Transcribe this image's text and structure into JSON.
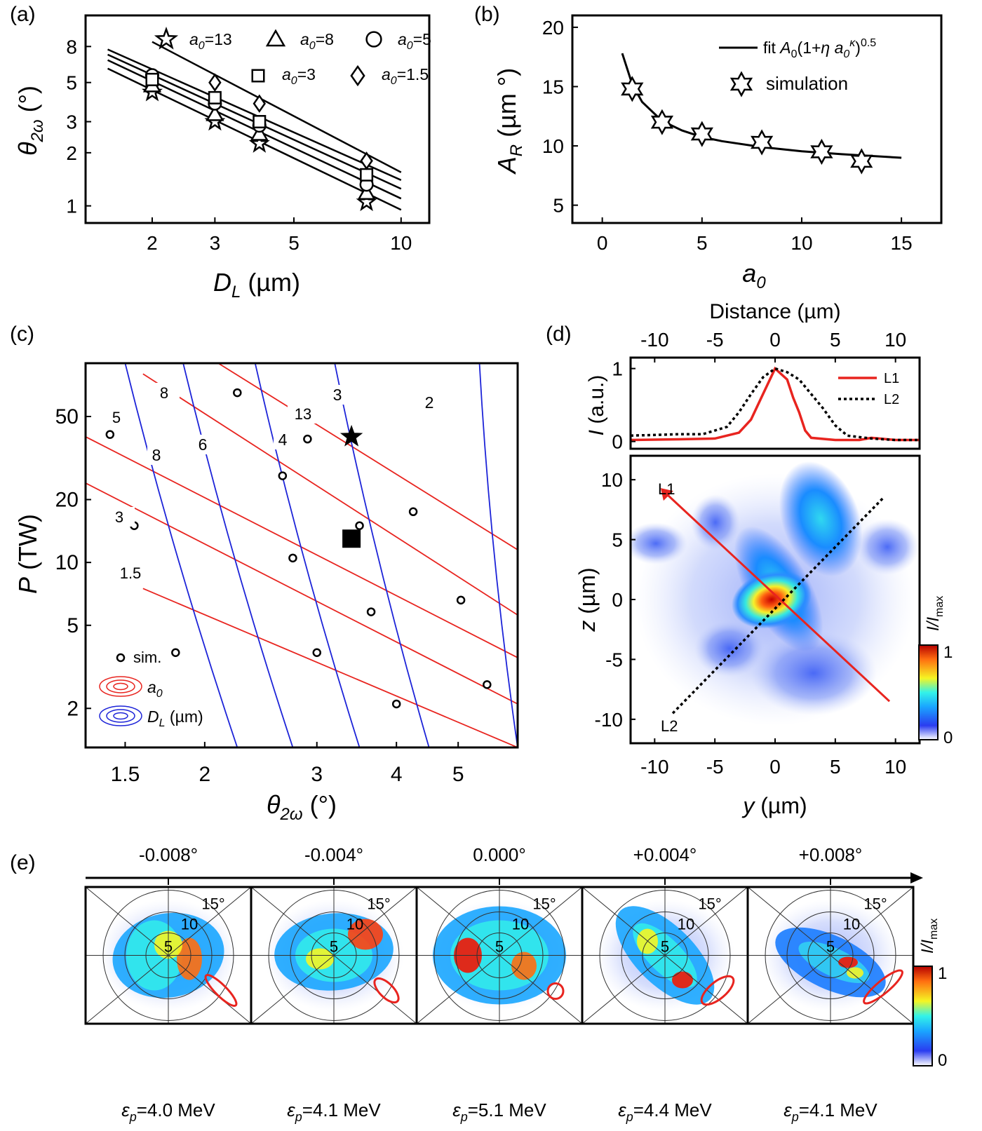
{
  "colors": {
    "red": "#e8241f",
    "blue": "#1d24d8",
    "black": "#000000"
  },
  "chart_data": [
    {
      "panel": "(a)",
      "type": "scatter",
      "log_x": true,
      "log_y": true,
      "xlabel_sym": "D",
      "xlabel_sub": "L",
      "xlabel_unit": " (µm)",
      "ylabel_sym": "θ",
      "ylabel_sub": "2ω",
      "ylabel_unit": " (°)",
      "xlim": [
        1.3,
        12
      ],
      "ylim": [
        0.8,
        12
      ],
      "xticks": [
        2,
        3,
        5,
        10
      ],
      "yticks": [
        1,
        2,
        3,
        5,
        8
      ],
      "xtick_labels": [
        "2",
        "3",
        "5",
        "10"
      ],
      "ytick_labels": [
        "1",
        "2",
        "3",
        "5",
        "8"
      ],
      "series": [
        {
          "name": "a0=13",
          "label": "a",
          "label_sub": "0",
          "label_val": "=13",
          "marker": "star",
          "x": [
            2,
            3,
            4,
            8
          ],
          "y": [
            4.4,
            3.0,
            2.25,
            1.05
          ]
        },
        {
          "name": "a0=8",
          "label": "a",
          "label_sub": "0",
          "label_val": "=8",
          "marker": "triangle",
          "x": [
            2,
            3,
            4,
            8
          ],
          "y": [
            4.8,
            3.3,
            2.55,
            1.18
          ]
        },
        {
          "name": "a0=5",
          "label": "a",
          "label_sub": "0",
          "label_val": "=5",
          "marker": "circle",
          "x": [
            2,
            3,
            4,
            8
          ],
          "y": [
            5.5,
            3.8,
            2.85,
            1.32
          ]
        },
        {
          "name": "a0=3",
          "label": "a",
          "label_sub": "0",
          "label_val": "=3",
          "marker": "square",
          "x": [
            2,
            3,
            4,
            8
          ],
          "y": [
            5.2,
            4.1,
            3.0,
            1.5
          ]
        },
        {
          "name": "a0=1.5",
          "label": "a",
          "label_sub": "0",
          "label_val": "=1.5",
          "marker": "diamond",
          "x": [
            3,
            4,
            8
          ],
          "y": [
            5.0,
            3.8,
            1.8
          ]
        }
      ],
      "fit_lines": [
        {
          "x": [
            1.5,
            10
          ],
          "y": [
            6.0,
            0.95
          ]
        },
        {
          "x": [
            1.5,
            10
          ],
          "y": [
            6.7,
            1.1
          ]
        },
        {
          "x": [
            1.5,
            10
          ],
          "y": [
            7.2,
            1.25
          ]
        },
        {
          "x": [
            1.5,
            10
          ],
          "y": [
            7.7,
            1.4
          ]
        },
        {
          "x": [
            2,
            10
          ],
          "y": [
            8.5,
            1.55
          ]
        }
      ]
    },
    {
      "panel": "(b)",
      "type": "scatter",
      "xlabel_sym": "a",
      "xlabel_sub": "0",
      "ylabel_sym": "A",
      "ylabel_sub": "R",
      "ylabel_unit": " (µm °)",
      "xlim": [
        -1.5,
        17
      ],
      "ylim": [
        3.5,
        21
      ],
      "xticks": [
        0,
        5,
        10,
        15
      ],
      "yticks": [
        5,
        10,
        15,
        20
      ],
      "xtick_labels": [
        "0",
        "5",
        "10",
        "15"
      ],
      "ytick_labels": [
        "5",
        "10",
        "15",
        "20"
      ],
      "legend": {
        "fit_label": "fit ",
        "fit_formula_a": "A",
        "fit_formula_a_sub": "0",
        "fit_formula_mid": "(1+",
        "fit_formula_eta": "η a",
        "fit_formula_eta_sub": "0",
        "fit_formula_kappa": "κ",
        "fit_formula_end": ")",
        "fit_formula_pow": "0.5",
        "sim_label": "simulation",
        "position": "top-right"
      },
      "simulation": {
        "x": [
          1.5,
          3,
          5,
          8,
          11,
          13
        ],
        "y": [
          14.8,
          12.0,
          11.0,
          10.3,
          9.5,
          8.7
        ]
      },
      "fit": {
        "x": [
          1,
          1.5,
          2,
          3,
          4,
          5,
          6,
          8,
          10,
          12,
          15
        ],
        "y": [
          17.8,
          15.2,
          13.7,
          12.1,
          11.3,
          10.75,
          10.4,
          9.9,
          9.55,
          9.3,
          9.0
        ]
      }
    },
    {
      "panel": "(c)",
      "type": "scatter",
      "log_x": true,
      "log_y": true,
      "xlabel_sym": "θ",
      "xlabel_sub": "2ω",
      "xlabel_unit": " (°)",
      "ylabel_sym": "P",
      "ylabel_unit": " (TW)",
      "xlim": [
        1.3,
        6.2
      ],
      "ylim": [
        1.3,
        90
      ],
      "xticks": [
        1.5,
        2,
        3,
        4,
        5
      ],
      "yticks": [
        2,
        5,
        10,
        20,
        50
      ],
      "xtick_labels": [
        "1.5",
        "2",
        "3",
        "4",
        "5"
      ],
      "ytick_labels": [
        "2",
        "5",
        "10",
        "20",
        "50"
      ],
      "a0_contours": [
        {
          "label": "1.5",
          "x": [
            1.6,
            6.2
          ],
          "y": [
            7.5,
            1.3
          ]
        },
        {
          "label": "3",
          "x": [
            1.3,
            6.2
          ],
          "y": [
            24,
            2.1
          ]
        },
        {
          "label": "5",
          "x": [
            1.3,
            6.2
          ],
          "y": [
            40,
            3.5
          ]
        },
        {
          "label": "8",
          "x": [
            1.6,
            6.2
          ],
          "y": [
            80,
            5.6
          ]
        },
        {
          "label": "13",
          "x": [
            2.1,
            6.2
          ],
          "y": [
            90,
            11.5
          ]
        }
      ],
      "dl_contours": [
        {
          "label": "2",
          "x": [
            5.4,
            6.2
          ],
          "y": [
            90,
            1.3
          ]
        },
        {
          "label": "3",
          "x": [
            3.2,
            4.5
          ],
          "y": [
            90,
            1.3
          ]
        },
        {
          "label": "4",
          "x": [
            2.4,
            3.5
          ],
          "y": [
            90,
            1.3
          ]
        },
        {
          "label": "6",
          "x": [
            1.85,
            2.75
          ],
          "y": [
            90,
            1.3
          ]
        },
        {
          "label": "8",
          "x": [
            1.5,
            2.25
          ],
          "y": [
            90,
            1.3
          ]
        }
      ],
      "sim_points": {
        "x": [
          2.25,
          1.42,
          1.55,
          2.65,
          2.9,
          3.5,
          4.25,
          2.75,
          3.65,
          5.05,
          1.8,
          3.0,
          4.0,
          5.55
        ],
        "y": [
          65,
          41,
          15,
          26,
          39,
          15,
          17.5,
          10.5,
          5.8,
          6.6,
          3.7,
          3.7,
          2.1,
          2.6
        ]
      },
      "star": {
        "x": 3.4,
        "y": 40
      },
      "square": {
        "x": 3.4,
        "y": 13
      },
      "legend": {
        "sim": "sim.",
        "a0": "a",
        "a0_sub": "0",
        "dl": "D",
        "dl_sub": "L",
        "dl_unit": " (µm)"
      }
    },
    {
      "panel": "(d)",
      "type": "heatmap",
      "top_xlabel": "Distance (µm)",
      "top_ylabel_sym": "I",
      "top_ylabel_unit": " (a.u.)",
      "xlim": [
        -12,
        12
      ],
      "ylim_profile": [
        -0.1,
        1.15
      ],
      "xticks": [
        -10,
        -5,
        0,
        5,
        10
      ],
      "xtick_labels": [
        "-10",
        "-5",
        "0",
        "5",
        "10"
      ],
      "profile_yticks": [
        0,
        1
      ],
      "profile_ytick_labels": [
        "0",
        "1"
      ],
      "xlabel_sym": "y",
      "xlabel_unit": " (µm)",
      "ylabel_sym": "z",
      "ylabel_unit": " (µm)",
      "ylim": [
        -12,
        12
      ],
      "yticks": [
        -10,
        -5,
        0,
        5,
        10
      ],
      "ytick_labels": [
        "-10",
        "-5",
        "0",
        "5",
        "10"
      ],
      "colorbar": {
        "label": "I/I",
        "label_sub": "max",
        "min": "0",
        "max": "1"
      },
      "lines": [
        {
          "name": "L1",
          "x": [
            9.5,
            -9.5
          ],
          "y": [
            -8.5,
            9.3
          ]
        },
        {
          "name": "L2",
          "x": [
            -8.5,
            9
          ],
          "y": [
            -9.5,
            8.5
          ]
        }
      ],
      "profiles": [
        {
          "name": "L1",
          "x": [
            -12,
            -8,
            -5,
            -3,
            -2,
            -1,
            0,
            1,
            1.5,
            2,
            2.5,
            3,
            5,
            7,
            8,
            10,
            12
          ],
          "y": [
            0.02,
            0.03,
            0.04,
            0.12,
            0.3,
            0.65,
            1.0,
            0.85,
            0.6,
            0.4,
            0.15,
            0.05,
            0.02,
            0.02,
            0.05,
            0.02,
            0.02
          ]
        },
        {
          "name": "L2",
          "x": [
            -12,
            -8,
            -6,
            -4,
            -3,
            -2,
            -1,
            0,
            1,
            2,
            3,
            4,
            5,
            6,
            8,
            10,
            12
          ],
          "y": [
            0.08,
            0.1,
            0.1,
            0.2,
            0.4,
            0.65,
            0.88,
            1.0,
            0.95,
            0.85,
            0.65,
            0.45,
            0.22,
            0.08,
            0.04,
            0.02,
            0.02
          ]
        }
      ]
    },
    {
      "panel": "(e)",
      "type": "heatmap",
      "angles": [
        "-0.008°",
        "-0.004°",
        "0.000°",
        "+0.004°",
        "+0.008°"
      ],
      "energies": [
        {
          "sym": "ε",
          "sub": "p",
          "val": "=4.0 MeV"
        },
        {
          "sym": "ε",
          "sub": "p",
          "val": "=4.1 MeV"
        },
        {
          "sym": "ε",
          "sub": "p",
          "val": "=5.1 MeV"
        },
        {
          "sym": "ε",
          "sub": "p",
          "val": "=4.4 MeV"
        },
        {
          "sym": "ε",
          "sub": "p",
          "val": "=4.1 MeV"
        }
      ],
      "ring_labels": [
        "5",
        "10",
        "15°"
      ],
      "colorbar": {
        "label": "I/I",
        "label_sub": "max",
        "min": "0",
        "max": "1"
      }
    }
  ]
}
